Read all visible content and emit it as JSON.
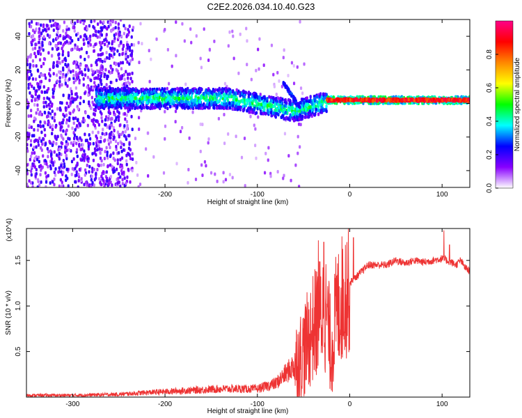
{
  "title": "C2E2.2026.034.10.40.G23",
  "chart_data": [
    {
      "type": "heatmap",
      "name": "spectrogram",
      "xlabel": "Height of straight line (km)",
      "ylabel": "Frequency (Hz)",
      "xlim": [
        -350,
        130
      ],
      "ylim": [
        -50,
        50
      ],
      "xticks": [
        -300,
        -200,
        -100,
        0,
        100
      ],
      "yticks": [
        -40,
        -20,
        0,
        20,
        40
      ],
      "xtick_labels": [
        "-300",
        "-200",
        "-100",
        "0",
        "100"
      ],
      "ytick_labels": [
        "-40",
        "-20",
        "0",
        "20",
        "40"
      ],
      "colorbar": {
        "label": "Normalized spectral amplitude",
        "range": [
          0,
          1
        ],
        "ticks": [
          0.0,
          0.2,
          0.4,
          0.6,
          0.8
        ],
        "tick_labels": [
          "0.0",
          "0.2",
          "0.4",
          "0.6",
          "0.8"
        ],
        "colors": [
          "#ffffff",
          "#8800ff",
          "#0000ff",
          "#00ffff",
          "#00ff00",
          "#ffff00",
          "#ff8800",
          "#ff0000",
          "#ff0088"
        ]
      },
      "features": {
        "noise_region_x": [
          -350,
          -240
        ],
        "signal_band_x": [
          -275,
          -25
        ],
        "strong_line_x": [
          -25,
          130
        ],
        "strong_line_frequency": 2
      }
    },
    {
      "type": "line",
      "name": "snr",
      "xlabel": "Height of straight line (km)",
      "ylabel": "SNR (10 * v/v)",
      "multiplier_label": "(x10^4)",
      "xlim": [
        -350,
        130
      ],
      "ylim": [
        0,
        1.85
      ],
      "xticks": [
        -300,
        -200,
        -100,
        0,
        100
      ],
      "yticks": [
        0.5,
        1.0,
        1.5
      ],
      "xtick_labels": [
        "-300",
        "-200",
        "-100",
        "0",
        "100"
      ],
      "ytick_labels": [
        "0.5",
        "1.0",
        "1.5"
      ],
      "color": "#ee3333",
      "x": [
        -350,
        -300,
        -250,
        -220,
        -200,
        -180,
        -160,
        -140,
        -120,
        -100,
        -80,
        -60,
        -50,
        -40,
        -35,
        -30,
        -25,
        -20,
        -15,
        -10,
        -5,
        0,
        5,
        10,
        20,
        30,
        40,
        50,
        60,
        70,
        80,
        90,
        100,
        110,
        115,
        120,
        125,
        130
      ],
      "values": [
        0.02,
        0.02,
        0.03,
        0.05,
        0.06,
        0.07,
        0.08,
        0.09,
        0.09,
        0.09,
        0.15,
        0.35,
        0.5,
        0.75,
        0.85,
        0.95,
        0.9,
        0.5,
        0.9,
        1.05,
        1.15,
        1.25,
        1.3,
        1.35,
        1.45,
        1.45,
        1.45,
        1.5,
        1.47,
        1.5,
        1.48,
        1.5,
        1.52,
        1.48,
        1.45,
        1.5,
        1.42,
        1.38
      ],
      "peaks": [
        {
          "x": -34,
          "y": 1.72
        },
        {
          "x": -28,
          "y": 1.7
        },
        {
          "x": 4,
          "y": 1.75
        },
        {
          "x": 102,
          "y": 1.83
        },
        {
          "x": 108,
          "y": 1.67
        }
      ]
    }
  ]
}
